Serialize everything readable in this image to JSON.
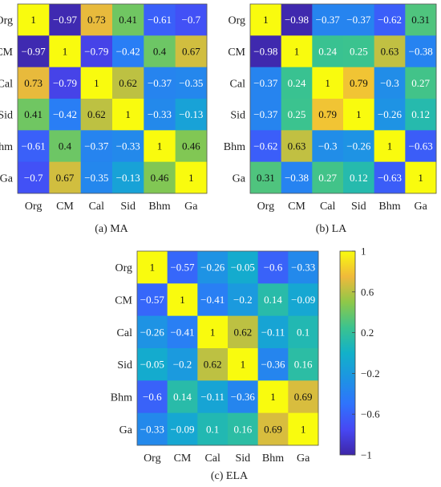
{
  "chart_data": [
    {
      "type": "heatmap",
      "caption": "(a) MA",
      "xlabels": [
        "Org",
        "CM",
        "Cal",
        "Sid",
        "Bhm",
        "Ga"
      ],
      "ylabels": [
        "Org",
        "CM",
        "Cal",
        "Sid",
        "Bhm",
        "Ga"
      ],
      "values": [
        [
          1,
          -0.97,
          0.73,
          0.41,
          -0.61,
          -0.7
        ],
        [
          -0.97,
          1,
          -0.79,
          -0.42,
          0.4,
          0.67
        ],
        [
          0.73,
          -0.79,
          1,
          0.62,
          -0.37,
          -0.35
        ],
        [
          0.41,
          -0.42,
          0.62,
          1,
          -0.33,
          -0.13
        ],
        [
          -0.61,
          0.4,
          -0.37,
          -0.33,
          1,
          0.46
        ],
        [
          -0.7,
          0.67,
          -0.35,
          -0.13,
          0.46,
          1
        ]
      ]
    },
    {
      "type": "heatmap",
      "caption": "(b) LA",
      "xlabels": [
        "Org",
        "CM",
        "Cal",
        "Sid",
        "Bhm",
        "Ga"
      ],
      "ylabels": [
        "Org",
        "CM",
        "Cal",
        "Sid",
        "Bhm",
        "Ga"
      ],
      "values": [
        [
          1,
          -0.98,
          -0.37,
          -0.37,
          -0.62,
          0.31
        ],
        [
          -0.98,
          1,
          0.24,
          0.25,
          0.63,
          -0.38
        ],
        [
          -0.37,
          0.24,
          1,
          0.79,
          -0.3,
          0.27
        ],
        [
          -0.37,
          0.25,
          0.79,
          1,
          -0.26,
          0.12
        ],
        [
          -0.62,
          0.63,
          -0.3,
          -0.26,
          1,
          -0.63
        ],
        [
          0.31,
          -0.38,
          0.27,
          0.12,
          -0.63,
          1
        ]
      ]
    },
    {
      "type": "heatmap",
      "caption": "(c) ELA",
      "xlabels": [
        "Org",
        "CM",
        "Cal",
        "Sid",
        "Bhm",
        "Ga"
      ],
      "ylabels": [
        "Org",
        "CM",
        "Cal",
        "Sid",
        "Bhm",
        "Ga"
      ],
      "values": [
        [
          1,
          -0.57,
          -0.26,
          -0.05,
          -0.6,
          -0.33
        ],
        [
          -0.57,
          1,
          -0.41,
          -0.2,
          0.14,
          -0.09
        ],
        [
          -0.26,
          -0.41,
          1,
          0.62,
          -0.11,
          0.1
        ],
        [
          -0.05,
          -0.2,
          0.62,
          1,
          -0.36,
          0.16
        ],
        [
          -0.6,
          0.14,
          -0.11,
          -0.36,
          1,
          0.69
        ],
        [
          -0.33,
          -0.09,
          0.1,
          0.16,
          0.69,
          1
        ]
      ]
    }
  ],
  "colorbar": {
    "range": [
      -1,
      1
    ],
    "ticks": [
      1,
      0.6,
      0.2,
      -0.2,
      -0.6,
      -1
    ],
    "tick_labels": [
      "1",
      "0.6",
      "0.2",
      "−0.2",
      "−0.6",
      "−1"
    ],
    "colormap": "parula"
  }
}
